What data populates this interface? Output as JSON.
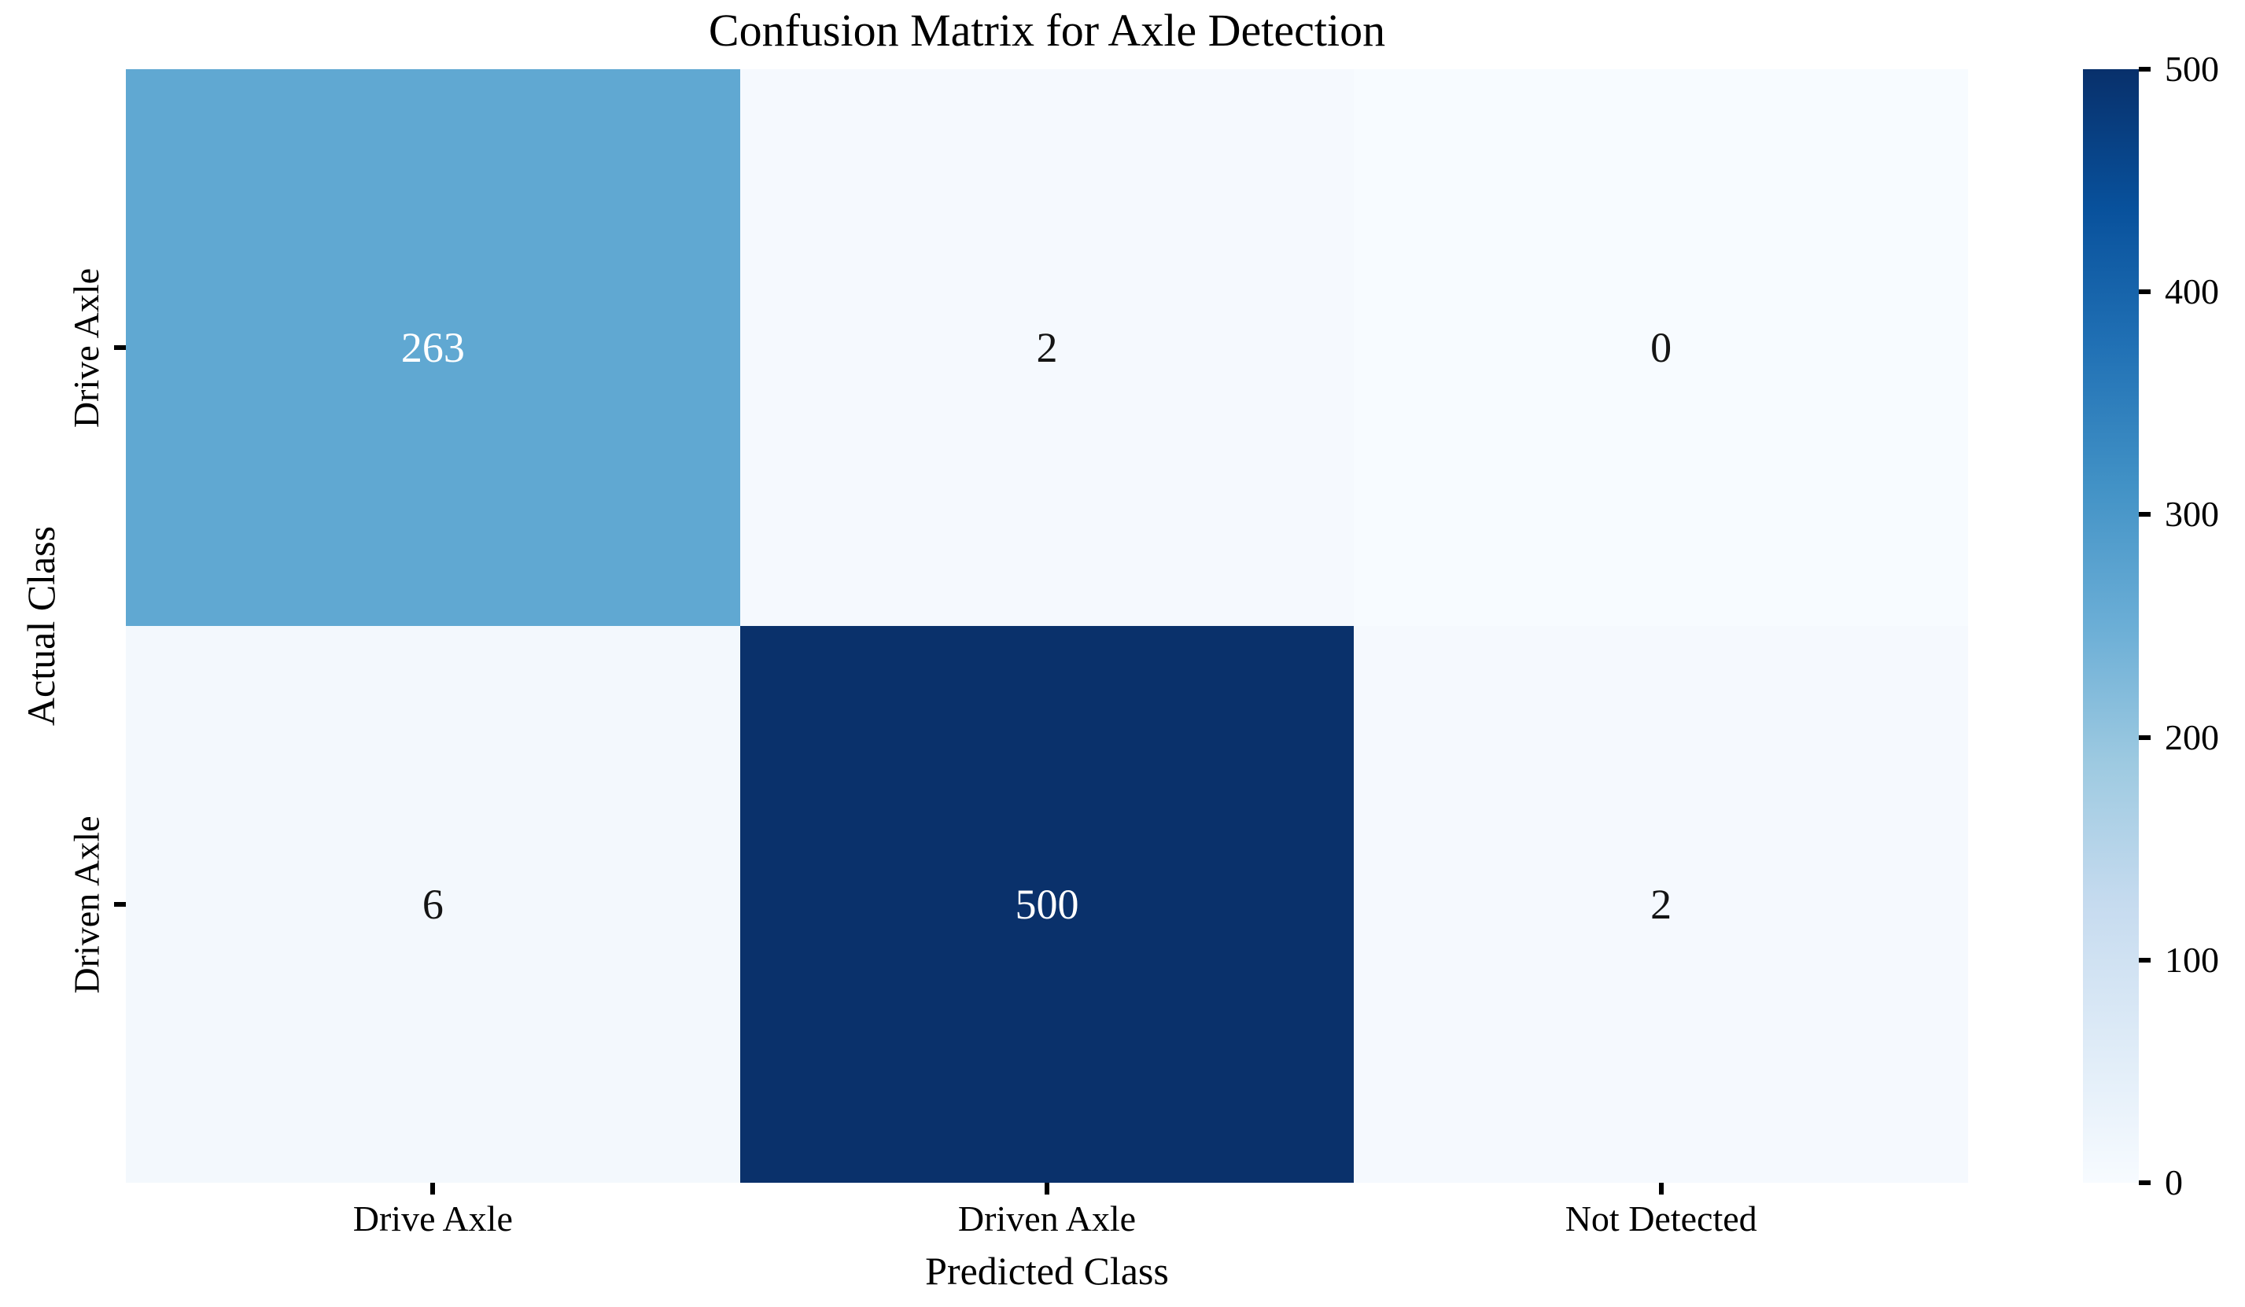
{
  "chart_data": {
    "type": "heatmap",
    "title": "Confusion Matrix for Axle Detection",
    "xlabel": "Predicted Class",
    "ylabel": "Actual Class",
    "x_categories": [
      "Drive Axle",
      "Driven Axle",
      "Not Detected"
    ],
    "y_categories": [
      "Drive Axle",
      "Driven Axle"
    ],
    "values": [
      [
        263,
        2,
        0
      ],
      [
        6,
        500,
        2
      ]
    ],
    "colormap": "Blues",
    "annotated": true,
    "grid": false,
    "legend_position": "none",
    "colorbar": {
      "min": 0,
      "max": 500,
      "ticks": [
        0,
        100,
        200,
        300,
        400,
        500
      ],
      "gradient": [
        "#f7fbff",
        "#deebf7",
        "#c6dbef",
        "#9ecae1",
        "#6baed6",
        "#4292c6",
        "#2171b5",
        "#08519c",
        "#08306b"
      ]
    }
  },
  "cells": [
    {
      "value": "263",
      "bg": "#60a8d2",
      "fg": "#ffffff"
    },
    {
      "value": "2",
      "bg": "#f5f9fe",
      "fg": "#141414"
    },
    {
      "value": "0",
      "bg": "#f7fbff",
      "fg": "#141414"
    },
    {
      "value": "6",
      "bg": "#f3f8fd",
      "fg": "#141414"
    },
    {
      "value": "500",
      "bg": "#0a316b",
      "fg": "#ffffff"
    },
    {
      "value": "2",
      "bg": "#f5f9fe",
      "fg": "#141414"
    }
  ],
  "colors": {
    "background": "#ffffff",
    "text": "#000000",
    "heatmap_min": "#f7fbff",
    "heatmap_max": "#08306b"
  }
}
